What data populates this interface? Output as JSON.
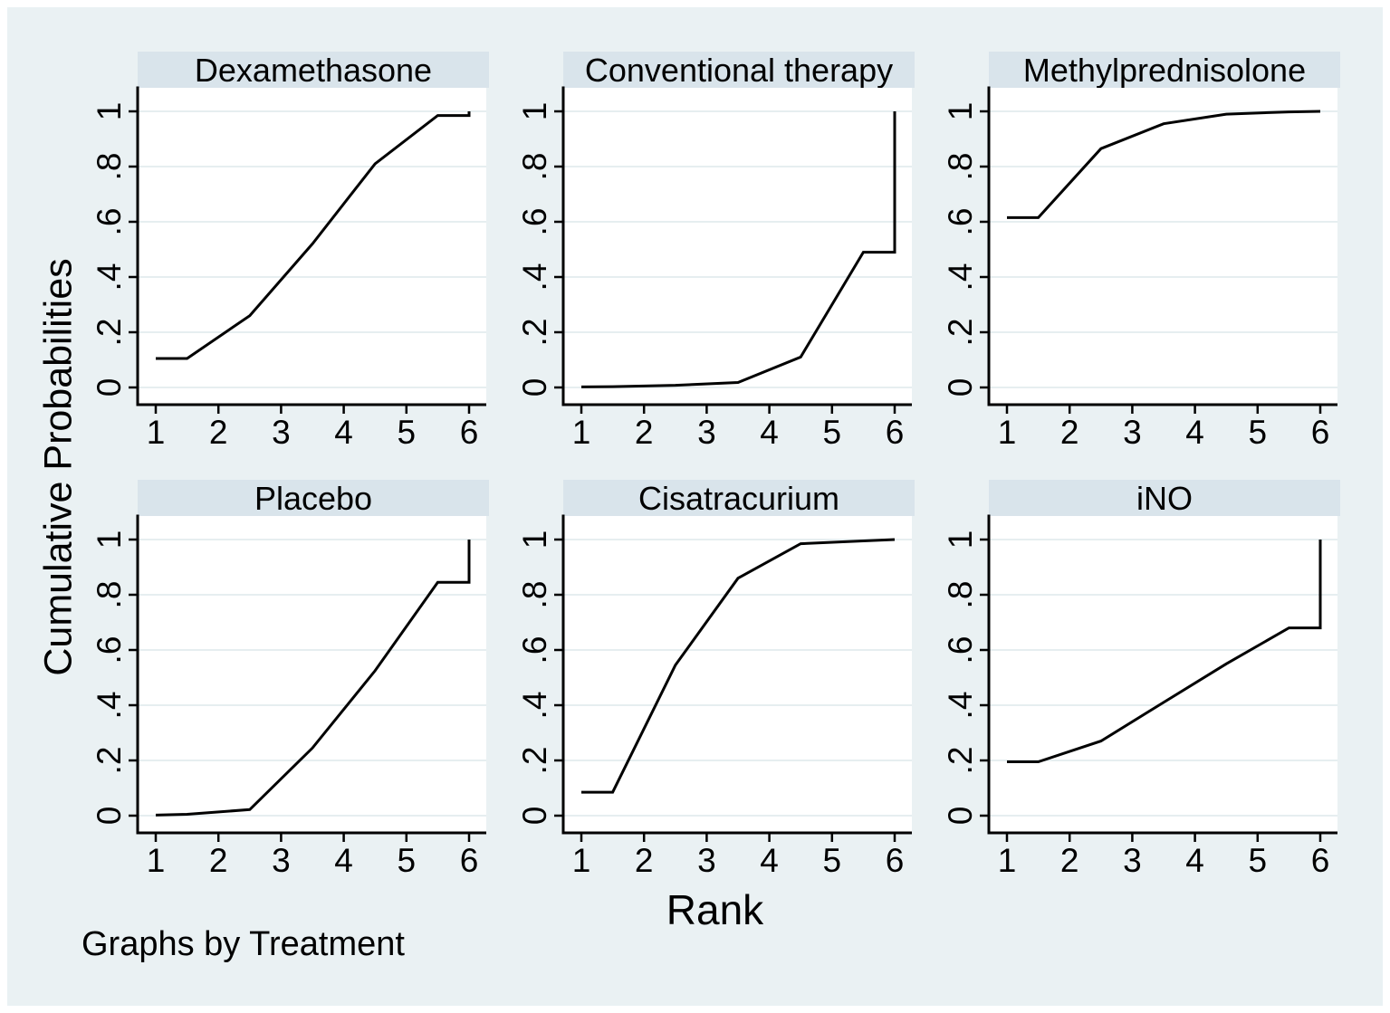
{
  "figure": {
    "ylabel": "Cumulative Probabilities",
    "xlabel": "Rank",
    "note": "Graphs by Treatment"
  },
  "colors": {
    "figure_bg": "#eaf1f3",
    "panel_title_bg": "#d9e4eb",
    "plot_bg": "#ffffff",
    "gridline": "#e6eef0",
    "axis": "#000000",
    "series_line": "#000000",
    "outer_border": "#ffffff",
    "text": "#000000"
  },
  "chart_data": {
    "type": "line",
    "title": "",
    "xlabel": "Rank",
    "ylabel": "Cumulative Probabilities",
    "note": "Graphs by Treatment",
    "layout": {
      "rows": 2,
      "cols": 3,
      "by": "Treatment",
      "grid": "horizontal gridlines on",
      "legend": "none"
    },
    "xlim": [
      1,
      6
    ],
    "ylim": [
      0,
      1
    ],
    "x_ticks": [
      1,
      2,
      3,
      4,
      5,
      6
    ],
    "x_tick_labels": [
      "1",
      "2",
      "3",
      "4",
      "5",
      "6"
    ],
    "y_ticks": [
      0,
      0.2,
      0.4,
      0.6,
      0.8,
      1
    ],
    "y_tick_labels": [
      "0",
      ".2",
      ".4",
      ".6",
      ".8",
      "1"
    ],
    "panels": [
      {
        "title": "Dexamethasone",
        "x": [
          1,
          1.5,
          2.5,
          3.5,
          4.5,
          5.5,
          6,
          6
        ],
        "y": [
          0.105,
          0.105,
          0.26,
          0.52,
          0.81,
          0.985,
          0.985,
          1.0
        ]
      },
      {
        "title": "Conventional therapy",
        "x": [
          1,
          1.5,
          2.5,
          3.5,
          4.5,
          5.5,
          6,
          6
        ],
        "y": [
          0.002,
          0.003,
          0.008,
          0.018,
          0.11,
          0.49,
          0.49,
          1.0
        ]
      },
      {
        "title": "Methylprednisolone",
        "x": [
          1,
          1.5,
          2.5,
          3.5,
          4.5,
          5.5,
          6
        ],
        "y": [
          0.615,
          0.615,
          0.865,
          0.955,
          0.99,
          0.998,
          1.0
        ]
      },
      {
        "title": "Placebo",
        "x": [
          1,
          1.5,
          2.5,
          3.5,
          4.5,
          5.5,
          6,
          6
        ],
        "y": [
          0.002,
          0.005,
          0.022,
          0.245,
          0.525,
          0.845,
          0.845,
          1.0
        ]
      },
      {
        "title": "Cisatracurium",
        "x": [
          1,
          1.5,
          2.5,
          3.5,
          4.5,
          5.5,
          6
        ],
        "y": [
          0.085,
          0.085,
          0.545,
          0.86,
          0.985,
          0.995,
          1.0
        ]
      },
      {
        "title": "iNO",
        "x": [
          1,
          1.5,
          2.5,
          3.5,
          4.5,
          5.5,
          6,
          6
        ],
        "y": [
          0.195,
          0.195,
          0.27,
          0.41,
          0.55,
          0.68,
          0.68,
          1.0
        ]
      }
    ]
  }
}
